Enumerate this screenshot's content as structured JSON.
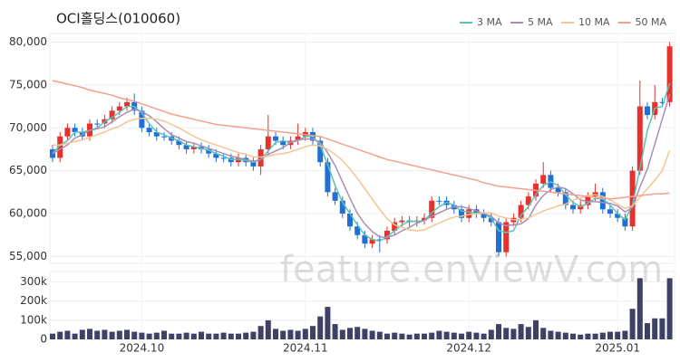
{
  "chart_data": {
    "type": "candlestick",
    "title": "OCI홀딩스(010060)",
    "watermark": "feature.enViewV.com",
    "up_color": "#e8302c",
    "down_color": "#1f6fd6",
    "grid": true,
    "legend": "top-right",
    "categories": [
      null,
      null,
      null,
      null,
      null,
      null,
      null,
      null,
      null,
      null,
      null,
      null,
      "2024.10",
      null,
      null,
      null,
      null,
      null,
      null,
      null,
      null,
      null,
      null,
      null,
      null,
      null,
      null,
      null,
      null,
      null,
      null,
      null,
      null,
      null,
      "2024.11",
      null,
      null,
      null,
      null,
      null,
      null,
      null,
      null,
      null,
      null,
      null,
      null,
      null,
      null,
      null,
      null,
      null,
      null,
      null,
      null,
      null,
      "2024.12",
      null,
      null,
      null,
      null,
      null,
      null,
      null,
      null,
      null,
      null,
      null,
      null,
      null,
      null,
      null,
      null,
      null,
      null,
      null,
      "2025.01",
      null,
      null,
      null,
      null,
      null,
      null,
      null
    ],
    "open": [
      67500,
      66500,
      69000,
      70000,
      69500,
      69000,
      70500,
      70500,
      71000,
      72000,
      72500,
      73000,
      72000,
      70000,
      69500,
      69000,
      69000,
      68500,
      68000,
      67500,
      67800,
      67500,
      67000,
      66500,
      66500,
      66000,
      66500,
      66000,
      65500,
      67500,
      69000,
      68500,
      68000,
      68500,
      69000,
      69500,
      68500,
      66000,
      62500,
      61500,
      60000,
      58500,
      57500,
      56500,
      57000,
      57000,
      58000,
      59000,
      59200,
      59000,
      59200,
      59500,
      61500,
      61500,
      61000,
      60500,
      59500,
      60500,
      60000,
      59500,
      59000,
      55500,
      59000,
      59500,
      61000,
      62000,
      63500,
      64500,
      63000,
      62500,
      61000,
      60500,
      61000,
      62000,
      62500,
      60500,
      60000,
      59500,
      58500,
      65000,
      72500,
      71500,
      73000,
      73000
    ],
    "high": [
      68000,
      69500,
      70500,
      70500,
      70000,
      71000,
      71000,
      71500,
      72500,
      73000,
      73500,
      74000,
      72500,
      70500,
      70000,
      69500,
      69500,
      69000,
      68500,
      68300,
      68300,
      68000,
      67500,
      67000,
      67000,
      67000,
      67000,
      66500,
      68000,
      71500,
      69500,
      69000,
      69000,
      70500,
      70000,
      70000,
      69000,
      66500,
      63000,
      62000,
      60500,
      59000,
      58000,
      57500,
      57500,
      58500,
      59500,
      59700,
      59700,
      59700,
      60000,
      62000,
      62000,
      62000,
      61500,
      61000,
      61000,
      61000,
      60500,
      60000,
      59500,
      59500,
      60000,
      61500,
      62500,
      64000,
      66000,
      65000,
      63500,
      63000,
      61500,
      61500,
      62500,
      63500,
      63000,
      61000,
      60500,
      60000,
      65500,
      75500,
      73000,
      75000,
      73500,
      80000
    ],
    "low": [
      66000,
      66000,
      68500,
      69000,
      68500,
      68500,
      70000,
      70000,
      70500,
      71500,
      72000,
      71500,
      69500,
      69000,
      68500,
      68500,
      68000,
      67500,
      67000,
      67000,
      67000,
      66500,
      66000,
      66000,
      65500,
      65500,
      65500,
      65000,
      64500,
      67000,
      68000,
      67500,
      67500,
      68000,
      68500,
      68000,
      65500,
      62000,
      61000,
      59500,
      58000,
      57000,
      56000,
      56000,
      55500,
      56500,
      57500,
      58500,
      58500,
      58500,
      58700,
      59000,
      61000,
      60500,
      60000,
      59000,
      59000,
      59500,
      59000,
      58500,
      55000,
      55000,
      58500,
      59000,
      60500,
      61500,
      63000,
      62500,
      62000,
      60500,
      60000,
      60000,
      60500,
      61500,
      60000,
      59500,
      59000,
      58000,
      58000,
      64500,
      71000,
      71000,
      72500,
      72500
    ],
    "close": [
      66500,
      69000,
      70000,
      69500,
      69000,
      70500,
      70500,
      71000,
      72000,
      72500,
      73000,
      72000,
      70000,
      69500,
      69000,
      69000,
      68500,
      68000,
      67500,
      67800,
      67500,
      67000,
      66500,
      66500,
      66000,
      66500,
      66000,
      65500,
      67500,
      69000,
      68500,
      68000,
      68500,
      69000,
      69500,
      68500,
      66000,
      62500,
      61500,
      60000,
      58500,
      57500,
      56500,
      57000,
      57000,
      58000,
      59000,
      59200,
      59000,
      59200,
      59500,
      61500,
      61500,
      61000,
      60500,
      59500,
      60500,
      60000,
      59500,
      59000,
      55500,
      59000,
      59500,
      61000,
      62000,
      63500,
      64500,
      63000,
      62500,
      61000,
      60500,
      61000,
      62000,
      62500,
      60500,
      60000,
      59500,
      58500,
      65000,
      72500,
      71500,
      73000,
      73000,
      79500
    ],
    "series": [
      {
        "name": "3 MA",
        "color": "#5cc3b3",
        "values": [
          67000,
          68000,
          68500,
          69500,
          69500,
          69700,
          70000,
          70700,
          71200,
          71800,
          72500,
          72500,
          71700,
          70500,
          69500,
          69200,
          68800,
          68500,
          68000,
          67800,
          67600,
          67400,
          67000,
          66700,
          66300,
          66300,
          66200,
          66000,
          66300,
          67300,
          68300,
          68500,
          68300,
          68500,
          69000,
          69000,
          68000,
          65700,
          63300,
          61300,
          60000,
          58700,
          57500,
          57000,
          56800,
          57300,
          58000,
          58700,
          59100,
          59100,
          59200,
          60100,
          60800,
          61300,
          61000,
          60300,
          60200,
          60000,
          60000,
          59500,
          58000,
          57800,
          58000,
          59800,
          60800,
          62200,
          63300,
          63700,
          63300,
          62200,
          61300,
          60800,
          61200,
          61800,
          61700,
          61000,
          60000,
          59300,
          61000,
          65300,
          69700,
          72300,
          72500,
          75200
        ]
      },
      {
        "name": "5 MA",
        "color": "#a88db8",
        "values": [
          67000,
          67500,
          68000,
          68800,
          69200,
          69700,
          69900,
          70100,
          70700,
          71300,
          71800,
          72200,
          71900,
          71400,
          70700,
          69900,
          69200,
          68800,
          68400,
          68200,
          67900,
          67600,
          67300,
          67000,
          66700,
          66500,
          66300,
          66100,
          66300,
          66900,
          67300,
          67700,
          68300,
          68600,
          68700,
          68700,
          68300,
          67100,
          65600,
          63700,
          61800,
          60000,
          58800,
          57900,
          57300,
          57200,
          57500,
          58000,
          58400,
          58900,
          59200,
          59700,
          60100,
          60500,
          60800,
          60800,
          60600,
          60300,
          60000,
          59700,
          58900,
          58600,
          58700,
          58800,
          59400,
          61000,
          62100,
          62800,
          63100,
          62900,
          62300,
          61600,
          61400,
          61400,
          61300,
          61200,
          60900,
          60200,
          60700,
          63100,
          65200,
          68100,
          71000,
          73900
        ]
      },
      {
        "name": "10 MA",
        "color": "#f2c592",
        "values": [
          68000,
          68000,
          68200,
          68400,
          68600,
          68900,
          69200,
          69500,
          69900,
          70200,
          70700,
          71000,
          71100,
          71100,
          71000,
          70800,
          70400,
          70000,
          69500,
          69000,
          68600,
          68300,
          68000,
          67700,
          67400,
          67100,
          66900,
          66600,
          66600,
          66700,
          66900,
          67000,
          67200,
          67500,
          67800,
          68000,
          67900,
          67500,
          66900,
          66200,
          65200,
          64100,
          62900,
          61700,
          60500,
          59400,
          58700,
          58400,
          58100,
          58000,
          58100,
          58500,
          58900,
          59300,
          59600,
          59700,
          59900,
          60000,
          60100,
          60100,
          59700,
          59500,
          59300,
          59300,
          59500,
          59900,
          60300,
          60600,
          60900,
          61100,
          61600,
          61800,
          62100,
          62200,
          62000,
          61600,
          61100,
          60600,
          60900,
          61900,
          62900,
          63900,
          65000,
          67400
        ]
      },
      {
        "name": "50 MA",
        "color": "#f4a08c",
        "values": [
          75500,
          75300,
          75100,
          74900,
          74700,
          74400,
          74200,
          74000,
          73800,
          73500,
          73300,
          73100,
          72800,
          72500,
          72200,
          71900,
          71600,
          71400,
          71200,
          71000,
          70800,
          70600,
          70400,
          70300,
          70200,
          70100,
          70000,
          69900,
          69800,
          69700,
          69600,
          69500,
          69400,
          69300,
          69200,
          69100,
          69000,
          68700,
          68400,
          68100,
          67800,
          67500,
          67200,
          66900,
          66600,
          66300,
          66100,
          65900,
          65700,
          65500,
          65300,
          65100,
          64900,
          64700,
          64500,
          64300,
          64100,
          63900,
          63600,
          63400,
          63200,
          63100,
          63000,
          62900,
          62800,
          62700,
          62600,
          62500,
          62400,
          62300,
          62200,
          62100,
          62000,
          61900,
          61800,
          61700,
          61800,
          61900,
          62000,
          62100,
          62200,
          62300,
          62300,
          62400
        ]
      }
    ],
    "ylim": [
      54200,
      81000
    ],
    "yticks": [
      {
        "value": 55000,
        "label": "55,000"
      },
      {
        "value": 60000,
        "label": "60,000"
      },
      {
        "value": 65000,
        "label": "65,000"
      },
      {
        "value": 70000,
        "label": "70,000"
      },
      {
        "value": 75000,
        "label": "75,000"
      },
      {
        "value": 80000,
        "label": "80,000"
      }
    ],
    "volume": {
      "color": "#3f4166",
      "ylim": [
        0,
        355000
      ],
      "yticks": [
        0,
        {
          "value": 100000,
          "label": "100k"
        },
        {
          "value": 200000,
          "label": "200k"
        },
        {
          "value": 300000,
          "label": "300k"
        }
      ],
      "values": [
        30000,
        40000,
        45000,
        30000,
        50000,
        55000,
        45000,
        50000,
        40000,
        45000,
        50000,
        40000,
        35000,
        30000,
        35000,
        45000,
        30000,
        30000,
        35000,
        30000,
        40000,
        30000,
        30000,
        35000,
        30000,
        30000,
        35000,
        40000,
        70000,
        100000,
        55000,
        45000,
        50000,
        45000,
        55000,
        70000,
        120000,
        170000,
        80000,
        50000,
        60000,
        65000,
        55000,
        45000,
        40000,
        30000,
        35000,
        30000,
        25000,
        30000,
        30000,
        35000,
        45000,
        40000,
        35000,
        30000,
        40000,
        35000,
        30000,
        50000,
        80000,
        60000,
        55000,
        80000,
        65000,
        100000,
        60000,
        45000,
        40000,
        35000,
        30000,
        25000,
        30000,
        30000,
        35000,
        40000,
        40000,
        45000,
        160000,
        320000,
        85000,
        110000,
        110000,
        320000
      ]
    }
  }
}
